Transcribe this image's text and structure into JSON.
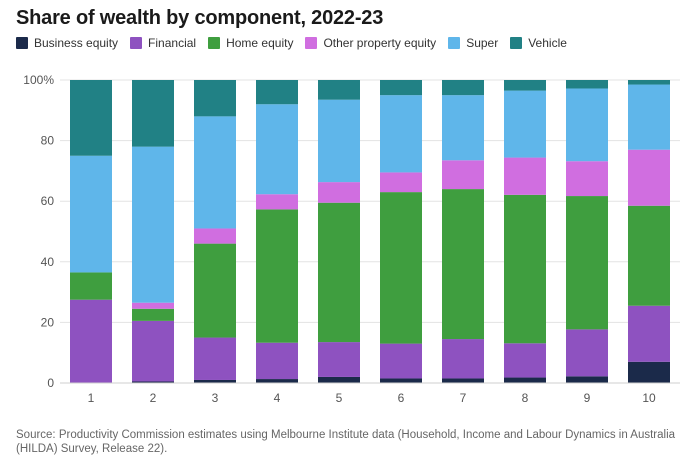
{
  "title": "Share of wealth by component, 2022-23",
  "source": "Source: Productivity Commission estimates using Melbourne Institute data (Household, Income and Labour Dynamics in Australia (HILDA) Survey, Release 22).",
  "colors": {
    "Business equity": "#1b2a4a",
    "Financial": "#8e52c0",
    "Home equity": "#3f9e3f",
    "Other property equity": "#d06ee0",
    "Super": "#5fb6ea",
    "Vehicle": "#218185"
  },
  "chart_data": {
    "type": "bar",
    "stacked": true,
    "title": "Share of wealth by component, 2022-23",
    "xlabel": "",
    "ylabel": "",
    "ylim": [
      0,
      100
    ],
    "yticks": [
      "0",
      "20",
      "40",
      "60",
      "80",
      "100%"
    ],
    "grid": true,
    "legend_position": "top-left",
    "categories": [
      "1",
      "2",
      "3",
      "4",
      "5",
      "6",
      "7",
      "8",
      "9",
      "10"
    ],
    "series": [
      {
        "name": "Business equity",
        "values": [
          0,
          0.5,
          1,
          1.3,
          2,
          1.5,
          1.5,
          1.8,
          2.2,
          7
        ]
      },
      {
        "name": "Financial",
        "values": [
          27.5,
          20,
          14,
          12,
          11.5,
          11.5,
          13,
          11.3,
          15.5,
          18.5
        ]
      },
      {
        "name": "Home equity",
        "values": [
          9,
          4,
          31,
          44,
          46,
          50,
          49.5,
          49,
          44,
          33
        ]
      },
      {
        "name": "Other property equity",
        "values": [
          0,
          2,
          5,
          5,
          6.8,
          6.5,
          9.5,
          12.3,
          11.5,
          18.5
        ]
      },
      {
        "name": "Super",
        "values": [
          38.5,
          51.5,
          37,
          29.7,
          27.2,
          25.5,
          21.5,
          22.1,
          24,
          21.5
        ]
      },
      {
        "name": "Vehicle",
        "values": [
          25,
          22,
          12,
          8,
          6.5,
          5,
          5,
          3.5,
          2.8,
          1.5
        ]
      }
    ]
  }
}
